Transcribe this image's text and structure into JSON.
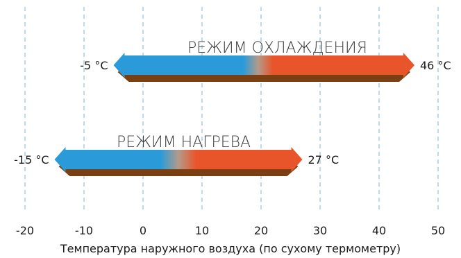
{
  "chart_data": {
    "type": "range-bar",
    "xlabel": "Температура наружного воздуха (по сухому термометру)",
    "ticks": [
      -20,
      -10,
      0,
      10,
      20,
      30,
      40,
      50
    ],
    "tick_labels": [
      "-20",
      "-10",
      "0",
      "10",
      "20",
      "30",
      "40",
      "50"
    ],
    "xlim": [
      -20,
      50
    ],
    "grid": "vertical dashed",
    "colors": {
      "cold": "#2a9bd8",
      "hot": "#e8552a",
      "shadow": "#7a3f12",
      "grid": "#7ab6dc"
    },
    "bars": [
      {
        "label": "РЕЖИМ ОХЛАЖДЕНИЯ",
        "min": -5,
        "max": 46,
        "min_label": "-5 °C",
        "max_label": "46 °C",
        "blend": [
          17,
          22
        ]
      },
      {
        "label": "РЕЖИМ НАГРЕВА",
        "min": -15,
        "max": 27,
        "min_label": "-15 °C",
        "max_label": "27 °C",
        "blend": [
          3,
          9
        ]
      }
    ]
  }
}
